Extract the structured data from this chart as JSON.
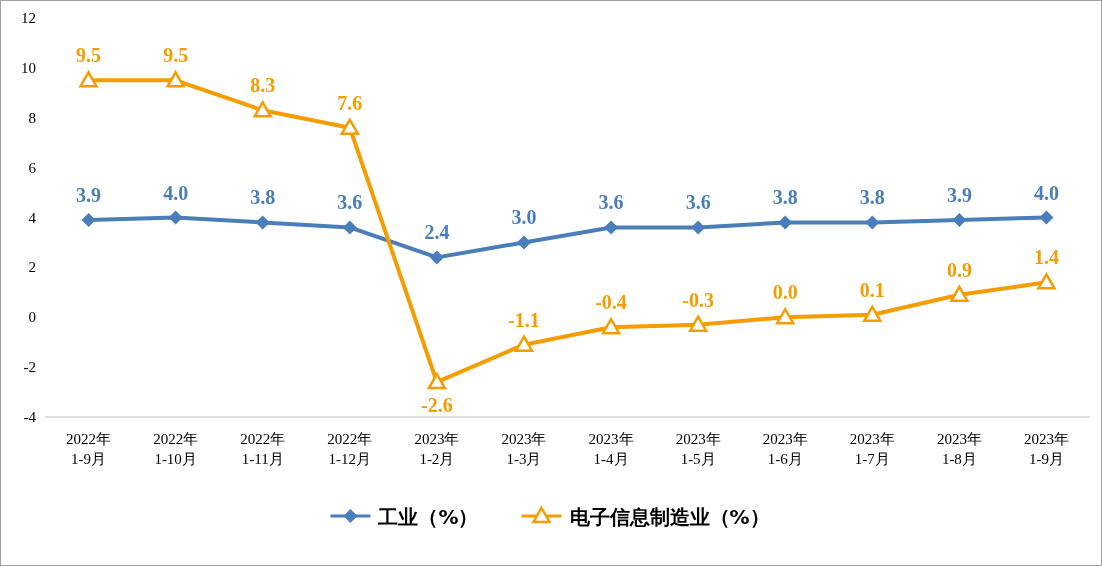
{
  "chart_data": {
    "type": "line",
    "categories": [
      "2022年\n1-9月",
      "2022年\n1-10月",
      "2022年\n1-11月",
      "2022年\n1-12月",
      "2023年\n1-2月",
      "2023年\n1-3月",
      "2023年\n1-4月",
      "2023年\n1-5月",
      "2023年\n1-6月",
      "2023年\n1-7月",
      "2023年\n1-8月",
      "2023年\n1-9月"
    ],
    "series": [
      {
        "name": "工业（%）",
        "color": "#4a7ebb",
        "marker": "diamond",
        "values": [
          3.9,
          4.0,
          3.8,
          3.6,
          2.4,
          3.0,
          3.6,
          3.6,
          3.8,
          3.8,
          3.9,
          4.0
        ],
        "value_labels": [
          "3.9",
          "4.0",
          "3.8",
          "3.6",
          "2.4",
          "3.0",
          "3.6",
          "3.6",
          "3.8",
          "3.8",
          "3.9",
          "4.0"
        ]
      },
      {
        "name": "电子信息制造业（%）",
        "color": "#f59d00",
        "marker": "triangle",
        "values": [
          9.5,
          9.5,
          8.3,
          7.6,
          -2.6,
          -1.1,
          -0.4,
          -0.3,
          0.0,
          0.1,
          0.9,
          1.4
        ],
        "value_labels": [
          "9.5",
          "9.5",
          "8.3",
          "7.6",
          "-2.6",
          "-1.1",
          "-0.4",
          "-0.3",
          "0.0",
          "0.1",
          "0.9",
          "1.4"
        ]
      }
    ],
    "ylim": [
      -4,
      12
    ],
    "yticks": [
      -4,
      -2,
      0,
      2,
      4,
      6,
      8,
      10,
      12
    ],
    "legend": "bottom",
    "grid": false
  }
}
